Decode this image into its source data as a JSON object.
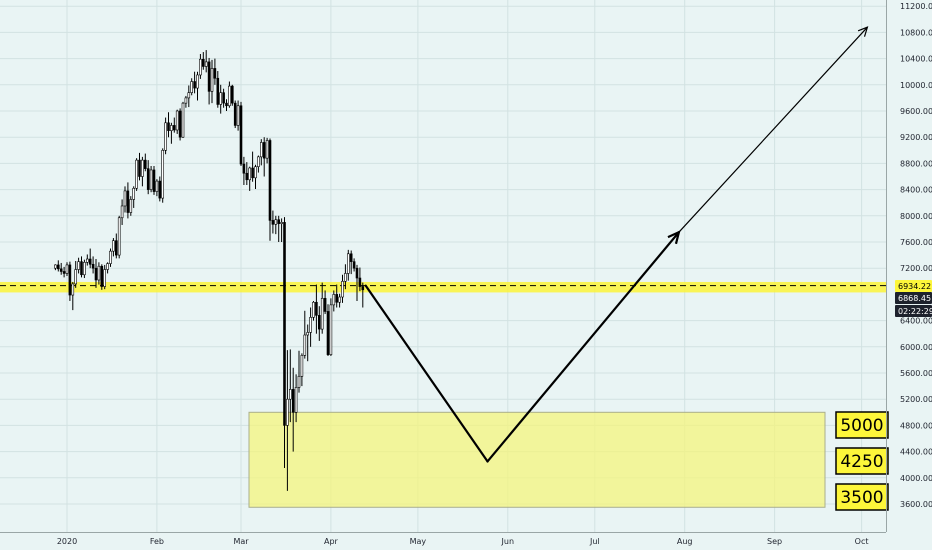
{
  "chart_data": {
    "type": "candlestick",
    "title": "",
    "xlabel": "",
    "ylabel": "",
    "ylim": [
      3300,
      11300
    ],
    "y_ticks": [
      "11200.00",
      "10800.00",
      "10400.00",
      "10000.00",
      "9600.00",
      "9200.00",
      "8800.00",
      "8400.00",
      "8000.00",
      "7600.00",
      "7200.00",
      "6400.00",
      "6000.00",
      "5600.00",
      "5200.00",
      "4800.00",
      "4400.00",
      "4000.00",
      "3600.00"
    ],
    "x_ticks": [
      "2020",
      "Feb",
      "Mar",
      "Apr",
      "May",
      "Jun",
      "Jul",
      "Aug",
      "Sep",
      "Oct"
    ],
    "grid": true,
    "price_labels": [
      {
        "text": "6934.22",
        "color": "#000000"
      },
      {
        "text": "6868.45",
        "color": "#1e222d"
      },
      {
        "text": "02:22:29",
        "color": "#1e222d"
      }
    ],
    "level_labels": [
      "5000",
      "4250",
      "3500"
    ],
    "resistance_band": [
      6830,
      6990
    ],
    "dashed_level": 6934.22,
    "support_zone": [
      3550,
      5000
    ],
    "candles": [
      [
        7200,
        7260,
        7170,
        7250
      ],
      [
        7250,
        7320,
        7150,
        7190
      ],
      [
        7190,
        7280,
        7100,
        7150
      ],
      [
        7150,
        7220,
        7060,
        7120
      ],
      [
        7120,
        7290,
        7080,
        7250
      ],
      [
        7250,
        7300,
        6700,
        6790
      ],
      [
        6790,
        6990,
        6560,
        6960
      ],
      [
        6960,
        7310,
        6900,
        7180
      ],
      [
        7180,
        7360,
        7120,
        7300
      ],
      [
        7300,
        7380,
        7060,
        7100
      ],
      [
        7100,
        7330,
        7050,
        7290
      ],
      [
        7290,
        7410,
        7240,
        7340
      ],
      [
        7340,
        7500,
        7200,
        7260
      ],
      [
        7260,
        7380,
        7120,
        7200
      ],
      [
        7200,
        7340,
        6900,
        7020
      ],
      [
        7020,
        7290,
        6950,
        7230
      ],
      [
        7230,
        7260,
        6870,
        6920
      ],
      [
        6920,
        7250,
        6880,
        7180
      ],
      [
        7180,
        7290,
        7120,
        7270
      ],
      [
        7270,
        7500,
        7220,
        7460
      ],
      [
        7460,
        7660,
        7380,
        7620
      ],
      [
        7620,
        7730,
        7350,
        7400
      ],
      [
        7400,
        8000,
        7350,
        7970
      ],
      [
        7970,
        8250,
        7860,
        8150
      ],
      [
        8150,
        8450,
        8050,
        8380
      ],
      [
        8380,
        8510,
        7960,
        8050
      ],
      [
        8050,
        8300,
        8000,
        8250
      ],
      [
        8250,
        8450,
        8120,
        8420
      ],
      [
        8420,
        8880,
        8380,
        8850
      ],
      [
        8850,
        8960,
        8540,
        8600
      ],
      [
        8600,
        8900,
        8450,
        8850
      ],
      [
        8850,
        8950,
        8680,
        8720
      ],
      [
        8720,
        8850,
        8330,
        8400
      ],
      [
        8400,
        8760,
        8360,
        8700
      ],
      [
        8700,
        8760,
        8320,
        8370
      ],
      [
        8370,
        8560,
        8300,
        8530
      ],
      [
        8530,
        8600,
        8220,
        8270
      ],
      [
        8270,
        9030,
        8200,
        9000
      ],
      [
        9000,
        9500,
        8940,
        9420
      ],
      [
        9420,
        9580,
        9200,
        9300
      ],
      [
        9300,
        9420,
        9100,
        9380
      ],
      [
        9380,
        9500,
        9270,
        9310
      ],
      [
        9310,
        9620,
        9250,
        9600
      ],
      [
        9600,
        9640,
        9150,
        9200
      ],
      [
        9200,
        9740,
        9190,
        9720
      ],
      [
        9720,
        9830,
        9650,
        9800
      ],
      [
        9800,
        9990,
        9660,
        9880
      ],
      [
        9880,
        10100,
        9840,
        10050
      ],
      [
        10050,
        10200,
        9870,
        9950
      ],
      [
        9950,
        10200,
        9760,
        10150
      ],
      [
        10150,
        10470,
        10090,
        10390
      ],
      [
        10390,
        10500,
        10230,
        10280
      ],
      [
        10280,
        10530,
        10190,
        10350
      ],
      [
        10350,
        10410,
        9700,
        9900
      ],
      [
        9900,
        10380,
        9720,
        10250
      ],
      [
        10250,
        10400,
        10000,
        10100
      ],
      [
        10100,
        10210,
        9650,
        9700
      ],
      [
        9700,
        10000,
        9560,
        9880
      ],
      [
        9880,
        9940,
        9650,
        9720
      ],
      [
        9720,
        9780,
        9600,
        9680
      ],
      [
        9680,
        10050,
        9650,
        9980
      ],
      [
        9980,
        10000,
        9680,
        9720
      ],
      [
        9720,
        9760,
        9340,
        9380
      ],
      [
        9380,
        9760,
        9300,
        9680
      ],
      [
        9680,
        9740,
        8760,
        8790
      ],
      [
        8790,
        8900,
        8470,
        8650
      ],
      [
        8650,
        8820,
        8470,
        8550
      ],
      [
        8550,
        8750,
        8380,
        8730
      ],
      [
        8730,
        8980,
        8520,
        8580
      ],
      [
        8580,
        8780,
        8410,
        8750
      ],
      [
        8750,
        8920,
        8660,
        8900
      ],
      [
        8900,
        9170,
        8770,
        9120
      ],
      [
        9120,
        9200,
        8600,
        8880
      ],
      [
        8880,
        9190,
        8800,
        9150
      ],
      [
        9150,
        9180,
        7620,
        7930
      ],
      [
        7930,
        8080,
        7730,
        7870
      ],
      [
        7870,
        8000,
        7720,
        7940
      ],
      [
        7940,
        8000,
        7600,
        7880
      ],
      [
        7880,
        7960,
        7600,
        7900
      ],
      [
        7900,
        7980,
        4150,
        4800
      ],
      [
        4800,
        5950,
        3800,
        5200
      ],
      [
        5200,
        5960,
        4850,
        5350
      ],
      [
        5350,
        5680,
        4400,
        5000
      ],
      [
        5000,
        5580,
        4850,
        5380
      ],
      [
        5380,
        5940,
        5300,
        5550
      ],
      [
        5550,
        5900,
        5400,
        5870
      ],
      [
        5870,
        6550,
        5820,
        6180
      ],
      [
        6180,
        6340,
        5780,
        6220
      ],
      [
        6220,
        6600,
        6000,
        6450
      ],
      [
        6450,
        6700,
        6400,
        6680
      ],
      [
        6680,
        6950,
        6200,
        6480
      ],
      [
        6480,
        6620,
        6090,
        6270
      ],
      [
        6270,
        6980,
        6200,
        6740
      ],
      [
        6740,
        6860,
        6500,
        6540
      ],
      [
        6540,
        6650,
        5860,
        5880
      ],
      [
        5880,
        6740,
        5860,
        6640
      ],
      [
        6640,
        6860,
        6540,
        6800
      ],
      [
        6800,
        6950,
        6600,
        6680
      ],
      [
        6680,
        6810,
        6600,
        6760
      ],
      [
        6760,
        7100,
        6670,
        7000
      ],
      [
        7000,
        7260,
        6880,
        7120
      ],
      [
        7120,
        7480,
        7010,
        7420
      ],
      [
        7420,
        7470,
        7110,
        7300
      ],
      [
        7300,
        7350,
        7150,
        7200
      ],
      [
        7200,
        7250,
        6700,
        7050
      ],
      [
        7050,
        7210,
        6850,
        6920
      ],
      [
        6920,
        6980,
        6600,
        6870
      ]
    ],
    "projection": [
      [
        6934,
        "Apr 13"
      ],
      [
        4250,
        "May 25"
      ],
      [
        7750,
        "Jul 30"
      ],
      [
        10880,
        "Oct 3"
      ]
    ]
  }
}
